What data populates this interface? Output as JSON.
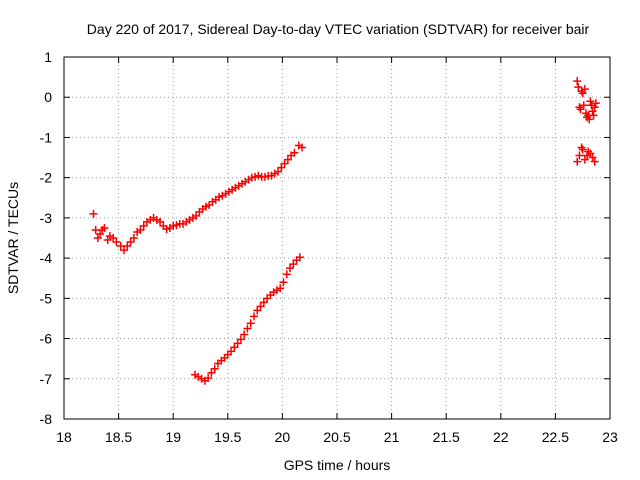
{
  "chart_data": {
    "type": "scatter",
    "title": "Day 220 of 2017, Sidereal Day-to-day VTEC variation (SDTVAR) for receiver bair",
    "xlabel": "GPS time / hours",
    "ylabel": "SDTVAR / TECUs",
    "xlim": [
      18,
      23
    ],
    "ylim": [
      -8,
      1
    ],
    "grid": true,
    "marker": "+",
    "color": "#ff0000",
    "xticks": [
      18,
      18.5,
      19,
      19.5,
      20,
      20.5,
      21,
      21.5,
      22,
      22.5,
      23
    ],
    "xtick_labels": [
      "18",
      "18.5",
      "19",
      "19.5",
      "20",
      "20.5",
      "21",
      "21.5",
      "22",
      "22.5",
      "23"
    ],
    "yticks": [
      1,
      0,
      -1,
      -2,
      -3,
      -4,
      -5,
      -6,
      -7,
      -8
    ],
    "ytick_labels": [
      "1",
      "0",
      "-1",
      "-2",
      "-3",
      "-4",
      "-5",
      "-6",
      "-7",
      "-8"
    ],
    "series": [
      {
        "name": "upper-trace",
        "points": [
          [
            18.27,
            -2.9
          ],
          [
            18.29,
            -3.3
          ],
          [
            18.31,
            -3.5
          ],
          [
            18.33,
            -3.4
          ],
          [
            18.35,
            -3.3
          ],
          [
            18.37,
            -3.25
          ],
          [
            18.4,
            -3.55
          ],
          [
            18.42,
            -3.45
          ],
          [
            18.45,
            -3.5
          ],
          [
            18.48,
            -3.6
          ],
          [
            18.52,
            -3.7
          ],
          [
            18.55,
            -3.8
          ],
          [
            18.58,
            -3.7
          ],
          [
            18.61,
            -3.6
          ],
          [
            18.64,
            -3.5
          ],
          [
            18.67,
            -3.35
          ],
          [
            18.7,
            -3.3
          ],
          [
            18.73,
            -3.2
          ],
          [
            18.76,
            -3.1
          ],
          [
            18.79,
            -3.05
          ],
          [
            18.82,
            -3.0
          ],
          [
            18.85,
            -3.05
          ],
          [
            18.88,
            -3.1
          ],
          [
            18.91,
            -3.2
          ],
          [
            18.94,
            -3.28
          ],
          [
            18.97,
            -3.25
          ],
          [
            19.0,
            -3.2
          ],
          [
            19.03,
            -3.18
          ],
          [
            19.06,
            -3.15
          ],
          [
            19.09,
            -3.15
          ],
          [
            19.12,
            -3.1
          ],
          [
            19.15,
            -3.05
          ],
          [
            19.18,
            -3.0
          ],
          [
            19.21,
            -2.95
          ],
          [
            19.24,
            -2.85
          ],
          [
            19.27,
            -2.78
          ],
          [
            19.3,
            -2.72
          ],
          [
            19.33,
            -2.68
          ],
          [
            19.36,
            -2.6
          ],
          [
            19.39,
            -2.55
          ],
          [
            19.42,
            -2.48
          ],
          [
            19.45,
            -2.45
          ],
          [
            19.48,
            -2.4
          ],
          [
            19.51,
            -2.35
          ],
          [
            19.54,
            -2.3
          ],
          [
            19.57,
            -2.25
          ],
          [
            19.6,
            -2.2
          ],
          [
            19.63,
            -2.15
          ],
          [
            19.66,
            -2.1
          ],
          [
            19.69,
            -2.05
          ],
          [
            19.72,
            -2.0
          ],
          [
            19.75,
            -1.98
          ],
          [
            19.78,
            -1.95
          ],
          [
            19.81,
            -1.98
          ],
          [
            19.84,
            -1.98
          ],
          [
            19.87,
            -1.96
          ],
          [
            19.9,
            -1.95
          ],
          [
            19.93,
            -1.9
          ],
          [
            19.96,
            -1.85
          ],
          [
            19.99,
            -1.75
          ],
          [
            20.02,
            -1.65
          ],
          [
            20.05,
            -1.55
          ],
          [
            20.08,
            -1.45
          ],
          [
            20.11,
            -1.38
          ],
          [
            20.15,
            -1.2
          ],
          [
            20.18,
            -1.25
          ]
        ]
      },
      {
        "name": "lower-trace",
        "points": [
          [
            19.2,
            -6.9
          ],
          [
            19.23,
            -6.95
          ],
          [
            19.26,
            -7.0
          ],
          [
            19.29,
            -7.05
          ],
          [
            19.32,
            -6.98
          ],
          [
            19.35,
            -6.85
          ],
          [
            19.38,
            -6.75
          ],
          [
            19.41,
            -6.62
          ],
          [
            19.44,
            -6.55
          ],
          [
            19.47,
            -6.48
          ],
          [
            19.5,
            -6.4
          ],
          [
            19.53,
            -6.32
          ],
          [
            19.56,
            -6.22
          ],
          [
            19.59,
            -6.12
          ],
          [
            19.62,
            -6.02
          ],
          [
            19.65,
            -5.9
          ],
          [
            19.68,
            -5.75
          ],
          [
            19.71,
            -5.62
          ],
          [
            19.74,
            -5.45
          ],
          [
            19.77,
            -5.3
          ],
          [
            19.8,
            -5.2
          ],
          [
            19.83,
            -5.1
          ],
          [
            19.86,
            -5.0
          ],
          [
            19.89,
            -4.92
          ],
          [
            19.92,
            -4.85
          ],
          [
            19.95,
            -4.8
          ],
          [
            19.98,
            -4.75
          ],
          [
            20.01,
            -4.6
          ],
          [
            20.04,
            -4.4
          ],
          [
            20.07,
            -4.25
          ],
          [
            20.1,
            -4.15
          ],
          [
            20.13,
            -4.05
          ],
          [
            20.16,
            -3.98
          ]
        ]
      },
      {
        "name": "late-upper-cluster",
        "points": [
          [
            22.7,
            0.4
          ],
          [
            22.71,
            0.25
          ],
          [
            22.72,
            -0.25
          ],
          [
            22.73,
            -0.3
          ],
          [
            22.74,
            0.15
          ],
          [
            22.75,
            0.1
          ],
          [
            22.76,
            -0.2
          ],
          [
            22.77,
            0.2
          ],
          [
            22.78,
            -0.4
          ],
          [
            22.79,
            -0.5
          ],
          [
            22.8,
            -0.45
          ],
          [
            22.81,
            -0.55
          ],
          [
            22.82,
            -0.1
          ],
          [
            22.83,
            -0.2
          ],
          [
            22.84,
            -0.35
          ],
          [
            22.85,
            -0.45
          ],
          [
            22.86,
            -0.25
          ],
          [
            22.87,
            -0.15
          ]
        ]
      },
      {
        "name": "late-lower-cluster",
        "points": [
          [
            22.7,
            -1.6
          ],
          [
            22.72,
            -1.45
          ],
          [
            22.74,
            -1.25
          ],
          [
            22.75,
            -1.3
          ],
          [
            22.77,
            -1.55
          ],
          [
            22.79,
            -1.45
          ],
          [
            22.8,
            -1.35
          ],
          [
            22.82,
            -1.4
          ],
          [
            22.84,
            -1.5
          ],
          [
            22.86,
            -1.6
          ]
        ]
      }
    ]
  }
}
